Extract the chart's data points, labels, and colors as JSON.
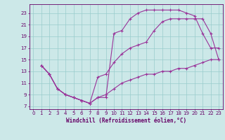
{
  "xlabel": "Windchill (Refroidissement éolien,°C)",
  "bg_color": "#cce8e8",
  "grid_color": "#99cccc",
  "line_color": "#993399",
  "xlim": [
    -0.5,
    23.5
  ],
  "ylim": [
    6.5,
    24.5
  ],
  "xticks": [
    0,
    1,
    2,
    3,
    4,
    5,
    6,
    7,
    8,
    9,
    10,
    11,
    12,
    13,
    14,
    15,
    16,
    17,
    18,
    19,
    20,
    21,
    22,
    23
  ],
  "yticks": [
    7,
    9,
    11,
    13,
    15,
    17,
    19,
    21,
    23
  ],
  "line1_x": [
    1,
    2,
    3,
    4,
    5,
    6,
    7,
    8,
    9,
    10,
    11,
    12,
    13,
    14,
    15,
    16,
    17,
    18,
    19,
    20,
    21,
    22,
    23
  ],
  "line1_y": [
    14,
    12.5,
    10,
    9,
    8.5,
    8,
    7.5,
    8.5,
    9,
    10,
    11,
    11.5,
    12,
    12.5,
    12.5,
    13,
    13,
    13.5,
    13.5,
    14,
    14.5,
    15,
    15
  ],
  "line2_x": [
    1,
    2,
    3,
    4,
    5,
    6,
    7,
    8,
    9,
    10,
    11,
    12,
    13,
    14,
    15,
    16,
    17,
    18,
    19,
    20,
    21,
    22,
    23
  ],
  "line2_y": [
    14,
    12.5,
    10,
    9,
    8.5,
    8,
    7.5,
    8.5,
    8.5,
    19.5,
    20,
    22,
    23,
    23.5,
    23.5,
    23.5,
    23.5,
    23.5,
    23,
    22.5,
    19.5,
    17,
    17
  ],
  "line3_x": [
    1,
    2,
    3,
    4,
    5,
    6,
    7,
    8,
    9,
    10,
    11,
    12,
    13,
    14,
    15,
    16,
    17,
    18,
    19,
    20,
    21,
    22,
    23
  ],
  "line3_y": [
    14,
    12.5,
    10,
    9,
    8.5,
    8,
    7.5,
    12,
    12.5,
    14.5,
    16,
    17,
    17.5,
    18,
    20,
    21.5,
    22,
    22,
    22,
    22,
    22,
    19.5,
    15
  ]
}
